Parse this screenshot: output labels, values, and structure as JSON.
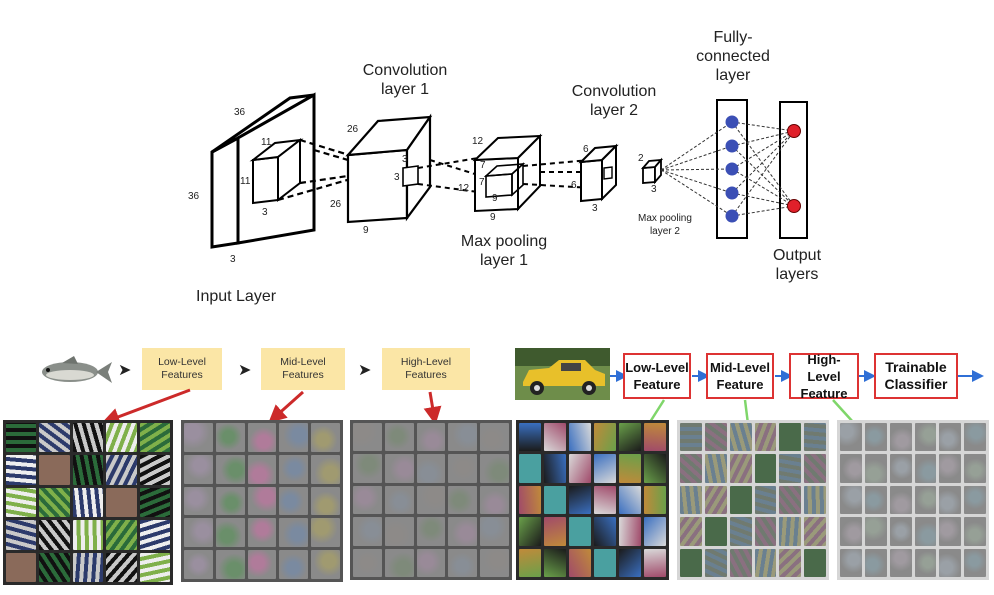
{
  "top_diagram": {
    "input_layer": {
      "label": "Input Layer",
      "dim_height": "36",
      "dim_width": "36",
      "dim_depth": "3",
      "kernel_h": "11",
      "kernel_w": "11",
      "kernel_d": "3"
    },
    "conv1": {
      "label_line1": "Convolution",
      "label_line2": "layer 1",
      "dim_h": "26",
      "dim_w": "26",
      "dim_d": "9",
      "kernel_h": "3",
      "kernel_w": "3"
    },
    "pool1": {
      "label_line1": "Max pooling",
      "label_line2": "layer 1",
      "dim_h": "12",
      "dim_w": "12",
      "dim_d": "9",
      "kernel_h": "7",
      "kernel_w": "7"
    },
    "conv2": {
      "label_line1": "Convolution",
      "label_line2": "layer 2",
      "dim_h": "6",
      "dim_w": "6",
      "dim_d": "3"
    },
    "pool2": {
      "label_line1": "Max pooling",
      "label_line2": "layer 2",
      "dim_h": "2",
      "dim_d": "3"
    },
    "fc": {
      "label_line1": "Fully-",
      "label_line2": "connected",
      "label_line3": "layer"
    },
    "output": {
      "label_line1": "Output",
      "label_line2": "layers"
    },
    "colors": {
      "fc_node": "#3b4fb5",
      "output_node": "#e0202a"
    }
  },
  "bottom_left": {
    "stages": [
      {
        "line1": "Low-Level",
        "line2": "Features"
      },
      {
        "line1": "Mid-Level",
        "line2": "Features"
      },
      {
        "line1": "High-Level",
        "line2": "Features"
      }
    ],
    "arrow_glyph": "➤",
    "colors": {
      "stage_box": "#fbe6a6",
      "arrow": "#cc2a2a"
    }
  },
  "bottom_right": {
    "stages": [
      {
        "line1": "Low-Level",
        "line2": "Feature"
      },
      {
        "line1": "Mid-Level",
        "line2": "Feature"
      },
      {
        "line1": "High-Level",
        "line2": "Feature"
      },
      {
        "line1": "Trainable",
        "line2": "Classifier"
      }
    ],
    "colors": {
      "stage_border": "#d33333",
      "arrow": "#2f6fd6",
      "connector": "#7fd66a"
    }
  }
}
